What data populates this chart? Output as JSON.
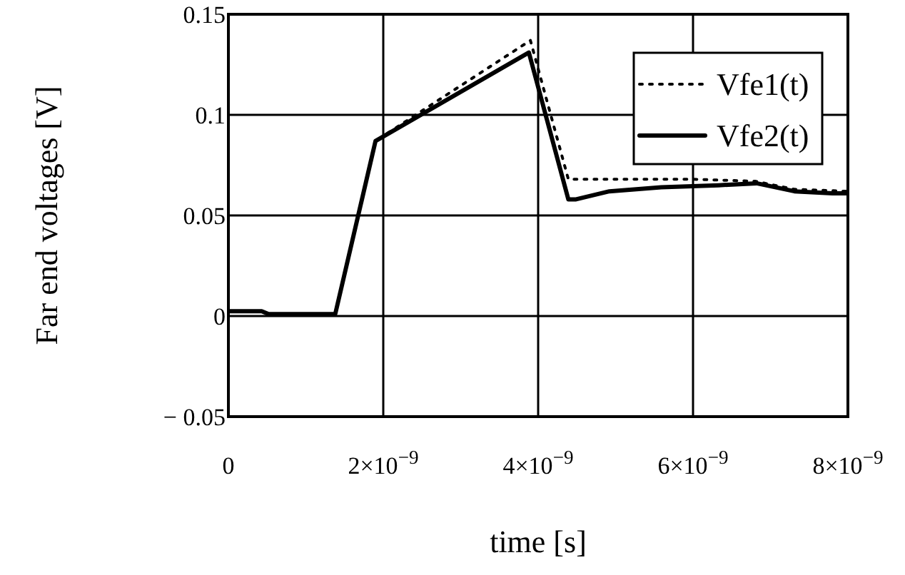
{
  "chart_data": {
    "type": "line",
    "xlabel": "time [s]",
    "ylabel": "Far end voltages [V]",
    "xlim": [
      0,
      8e-09
    ],
    "ylim": [
      -0.05,
      0.15
    ],
    "xticks": [
      0,
      {
        "value": 2e-09,
        "label": "2×10$^{−9}$"
      },
      {
        "value": 4e-09,
        "label": "4×10$^{−9}$"
      },
      {
        "value": 6e-09,
        "label": "6×10$^{−9}$"
      },
      {
        "value": 8e-09,
        "label": "8×10$^{−9}$"
      }
    ],
    "yticks": [
      {
        "value": -0.05,
        "label": "− 0.05"
      },
      0,
      0.05,
      0.1,
      0.15
    ],
    "grid": true,
    "legend": "top right",
    "series": [
      {
        "name": "Vfe1(t)",
        "color": "#000000",
        "line_style": "dotted",
        "x": [
          0,
          4.3e-10,
          5.2e-10,
          1.38e-09,
          1.9e-09,
          3.9e-09,
          4.39e-09,
          5e-09,
          6e-09,
          6.8e-09,
          7.31e-09,
          8e-09
        ],
        "values": [
          0.0024,
          0.0024,
          0.001,
          0.001,
          0.087,
          0.137,
          0.068,
          0.068,
          0.068,
          0.067,
          0.063,
          0.062
        ]
      },
      {
        "name": "Vfe2(t)",
        "color": "#000000",
        "line_style": "solid",
        "x": [
          0,
          4.3e-10,
          5.2e-10,
          1.38e-09,
          1.9e-09,
          3.88e-09,
          4.39e-09,
          4.49e-09,
          4.92e-09,
          5.59e-09,
          6.33e-09,
          6.82e-09,
          7.31e-09,
          7.8e-09,
          8e-09
        ],
        "values": [
          0.0024,
          0.0024,
          0.001,
          0.001,
          0.087,
          0.131,
          0.058,
          0.058,
          0.062,
          0.064,
          0.065,
          0.066,
          0.062,
          0.061,
          0.061
        ]
      }
    ]
  }
}
